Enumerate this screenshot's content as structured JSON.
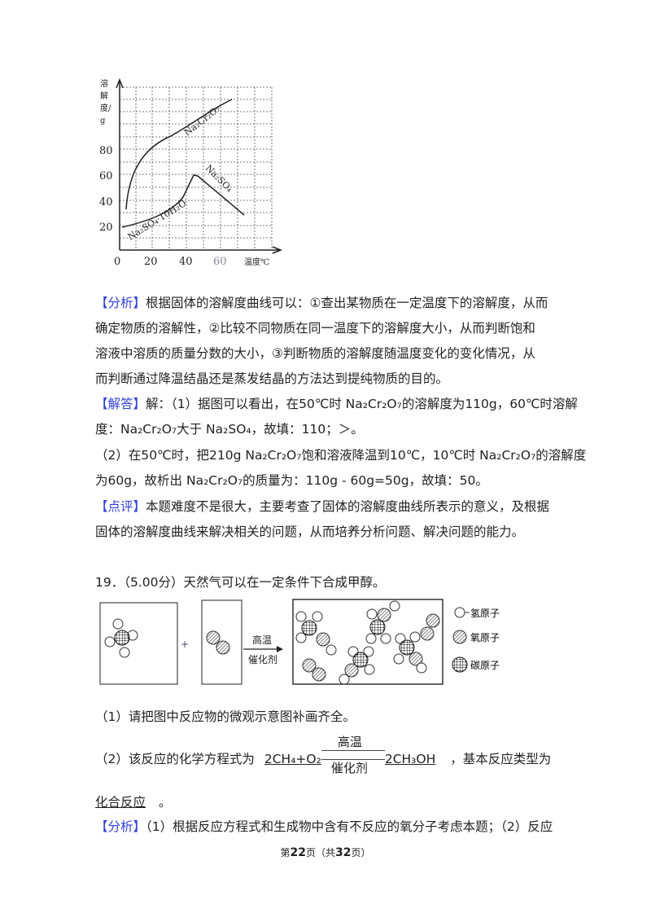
{
  "chart": {
    "ylabel": "溶解度/g",
    "xlabel": "温度℃",
    "xticks": [
      "0",
      "20",
      "40",
      "60"
    ],
    "yticks": [
      "20",
      "40",
      "60",
      "80"
    ],
    "series": [
      {
        "name": "Na₂Cr₂O₇"
      },
      {
        "name": "Na₂SO₄"
      },
      {
        "name": "Na₂SO₄·10H₂O"
      }
    ]
  },
  "analysis1": {
    "tag": "【分析】",
    "lines": [
      "根据固体的溶解度曲线可以：①查出某物质在一定温度下的溶解度，从而",
      "确定物质的溶解性，②比较不同物质在同一温度下的溶解度大小，从而判断饱和",
      "溶液中溶质的质量分数的大小，③判断物质的溶解度随温度变化的变化情况，从",
      "而判断通过降温结晶还是蒸发结晶的方法达到提纯物质的目的。"
    ]
  },
  "answer1": {
    "tag": "【解答】",
    "lines": [
      "解：（1）据图可以看出，在50℃时 Na₂Cr₂O₇的溶解度为110g，60℃时溶解",
      "度：Na₂Cr₂O₇大于 Na₂SO₄，故填：110；＞。",
      "（2）在50℃时，把210g Na₂Cr₂O₇饱和溶液降温到10℃，10℃时 Na₂Cr₂O₇的溶解度",
      "为60g，故析出 Na₂Cr₂O₇的质量为：110g - 60g=50g，故填：50。"
    ]
  },
  "comment1": {
    "tag": "【点评】",
    "lines": [
      "本题难度不是很大，主要考查了固体的溶解度曲线所表示的意义，及根据",
      "固体的溶解度曲线来解决相关的问题，从而培养分析问题、解决问题的能力。"
    ]
  },
  "q19": {
    "title": "19．（5.00分）天然气可以在一定条件下合成甲醇。",
    "diagram": {
      "plus": "+",
      "cond_top": "高温",
      "cond_bottom": "催化剂",
      "legend": [
        "氢原子",
        "氧原子",
        "碳原子"
      ]
    },
    "part1": "（1）请把图中反应物的微观示意图补画齐全。",
    "part2_prefix": "（2）该反应的化学方程式为",
    "eq_left": "2CH₄+O₂",
    "eq_top": "高温",
    "eq_bottom": "催化剂",
    "eq_right": "2CH₃OH",
    "part2_suffix": "，基本反应类型为",
    "answer_type": "化合反应",
    "end": "。"
  },
  "analysis2": {
    "tag": "【分析】",
    "text": "（1）根据反应方程式和生成物中含有不反应的氧分子考虑本题；（2）反应"
  },
  "footer": {
    "pre": "第",
    "page": "22",
    "mid": "页（共",
    "total": "32",
    "post": "页）"
  }
}
